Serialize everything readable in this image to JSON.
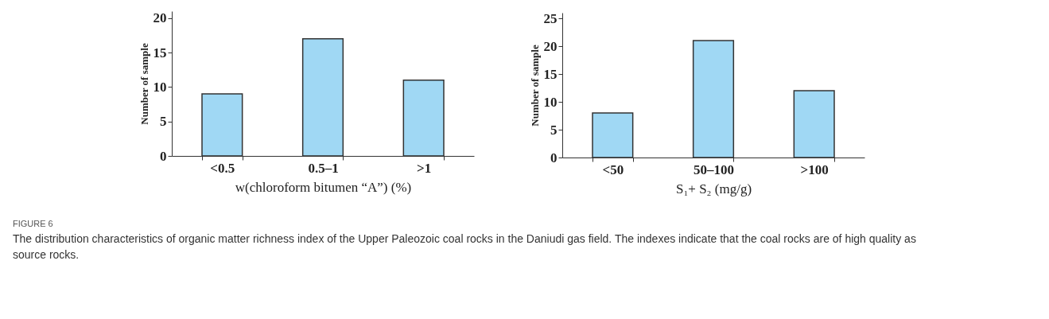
{
  "chart_data": [
    {
      "type": "bar",
      "xlabel": "w(chloroform bitumen “A”) (%)",
      "ylabel": "Number of sample",
      "categories": [
        "<0.5",
        "0.5–1",
        ">1"
      ],
      "values": [
        9,
        17,
        11
      ],
      "color": "#a0d8f4",
      "ylim": [
        0,
        21
      ],
      "yticks": [
        0,
        5,
        10,
        15,
        20
      ],
      "grid": false,
      "annotations": [
        "FIGURE 6",
        "The distribution characteristics of organic matter richness index of the Upper Paleozoic coal rocks in the Daniudi gas field. The indexes indicate that the coal rocks are of high quality as source rocks."
      ]
    },
    {
      "type": "bar",
      "xlabel": "S₁+ S₂ (mg/g)",
      "ylabel": "Number of sample",
      "categories": [
        "<50",
        "50–100",
        ">100"
      ],
      "values": [
        8,
        21,
        12
      ],
      "color": "#a0d8f4",
      "ylim": [
        0,
        26
      ],
      "yticks": [
        0,
        5,
        10,
        15,
        20,
        25
      ],
      "grid": false
    }
  ]
}
